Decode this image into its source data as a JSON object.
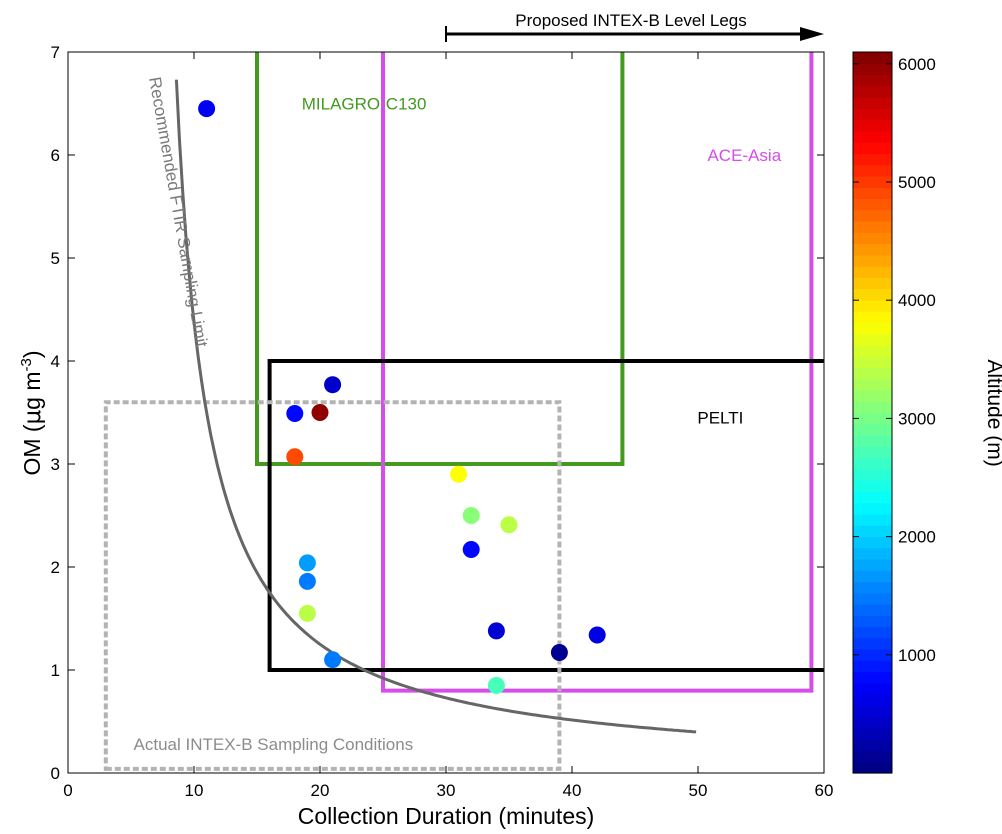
{
  "chart_data": {
    "type": "scatter",
    "title": "",
    "xlabel": "Collection Duration (minutes)",
    "ylabel_main": "OM (",
    "ylabel_mu": "μ",
    "ylabel_g": "g m",
    "ylabel_sup": "-3",
    "ylabel_close": ")",
    "colorbar_label": "Altitude (m)",
    "xlim": [
      0,
      60
    ],
    "ylim": [
      0,
      7
    ],
    "xticks": [
      0,
      10,
      20,
      30,
      40,
      50,
      60
    ],
    "yticks": [
      0,
      1,
      2,
      3,
      4,
      5,
      6,
      7
    ],
    "colorbar_range": [
      0,
      6100
    ],
    "colorbar_ticks": [
      1000,
      2000,
      3000,
      4000,
      5000,
      6000
    ],
    "grid": false,
    "points": [
      {
        "x": 11,
        "y": 6.45,
        "altitude": 700
      },
      {
        "x": 21,
        "y": 3.77,
        "altitude": 450
      },
      {
        "x": 18,
        "y": 3.49,
        "altitude": 800
      },
      {
        "x": 20,
        "y": 3.5,
        "altitude": 6000
      },
      {
        "x": 18,
        "y": 3.07,
        "altitude": 4900
      },
      {
        "x": 19,
        "y": 2.04,
        "altitude": 1700
      },
      {
        "x": 19,
        "y": 1.86,
        "altitude": 1500
      },
      {
        "x": 19,
        "y": 1.55,
        "altitude": 3400
      },
      {
        "x": 21,
        "y": 1.1,
        "altitude": 1500
      },
      {
        "x": 31,
        "y": 2.9,
        "altitude": 3800
      },
      {
        "x": 32,
        "y": 2.5,
        "altitude": 3100
      },
      {
        "x": 35,
        "y": 2.41,
        "altitude": 3400
      },
      {
        "x": 32,
        "y": 2.17,
        "altitude": 800
      },
      {
        "x": 34,
        "y": 1.38,
        "altitude": 500
      },
      {
        "x": 39,
        "y": 1.17,
        "altitude": 100
      },
      {
        "x": 42,
        "y": 1.34,
        "altitude": 600
      },
      {
        "x": 34,
        "y": 0.85,
        "altitude": 2700
      }
    ],
    "curve": {
      "label": "Recommended FTIR Sampling Limit",
      "k": 17.5,
      "x_start": 8.6,
      "x_end": 50,
      "color": "#666666"
    },
    "regions": [
      {
        "name": "MILAGRO-C130",
        "x0": 15,
        "x1": 44,
        "y0": 3.0,
        "y1": 7.0,
        "color": "#44991f",
        "open_top": true,
        "label_x": 23.5,
        "label_y": 6.5,
        "label_anchor": "middle"
      },
      {
        "name": "ACE-Asia",
        "x0": 25,
        "x1": 59,
        "y0": 0.8,
        "y1": 7.0,
        "color": "#d54ee9",
        "open_top": true,
        "label_x": 56.6,
        "label_y": 6.0,
        "label_anchor": "end"
      },
      {
        "name": "PELTI",
        "x0": 16,
        "x1": 60,
        "y0": 1.0,
        "y1": 4.0,
        "color": "#000000",
        "open_right": true,
        "label_x": 53.6,
        "label_y": 3.45,
        "label_anchor": "end"
      },
      {
        "name": "Actual INTEX-B Sampling Conditions",
        "x0": 3,
        "x1": 39,
        "y0": 0.04,
        "y1": 3.6,
        "color": "#b3b3b3",
        "dashed": true,
        "label_x": 5.2,
        "label_y": 0.28,
        "label_anchor": "start"
      }
    ],
    "arrow": {
      "label": "Proposed INTEX-B Level Legs",
      "x_start": 30,
      "x_end": 60
    }
  }
}
